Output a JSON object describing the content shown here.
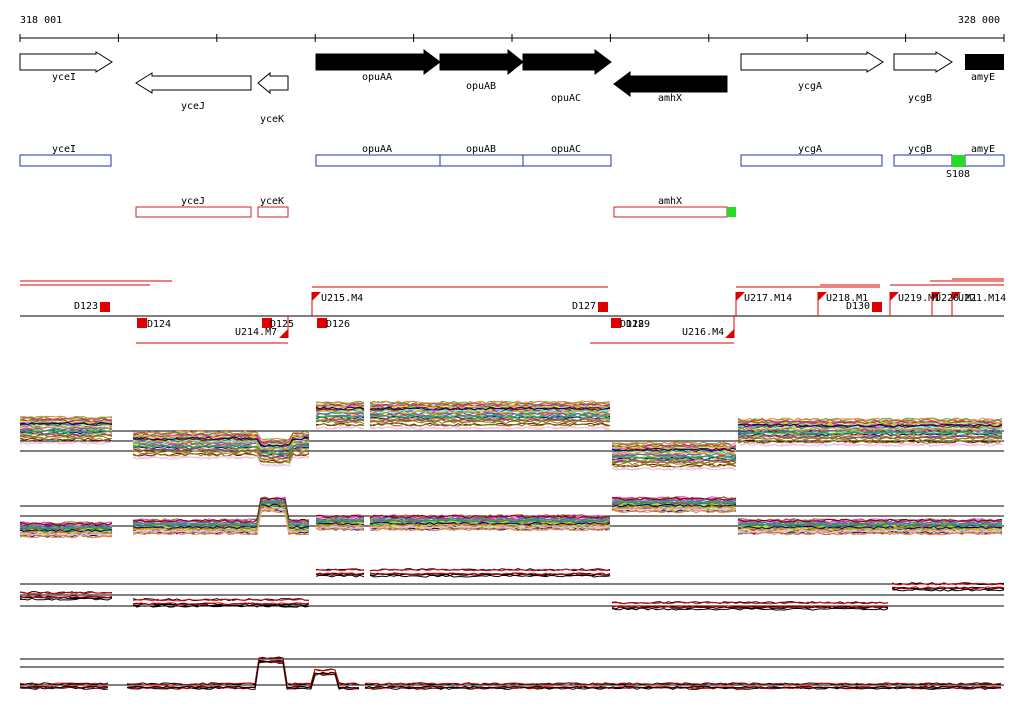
{
  "ruler": {
    "start_label": "318 001",
    "end_label": "328 000"
  },
  "colors": {
    "filled_gene": "#000000",
    "outline_gene": "#000000",
    "sense_box": "#2233aa",
    "antisense_box": "#cc2222",
    "marker_green": "#22dd22",
    "segment_red": "#dd0000"
  },
  "genes": [
    {
      "label": "yceI",
      "filled": false,
      "dir": "right"
    },
    {
      "label": "yceJ",
      "filled": false,
      "dir": "left"
    },
    {
      "label": "yceK",
      "filled": false,
      "dir": "left"
    },
    {
      "label": "opuAA",
      "filled": true,
      "dir": "right"
    },
    {
      "label": "opuAB",
      "filled": true,
      "dir": "right"
    },
    {
      "label": "opuAC",
      "filled": true,
      "dir": "right"
    },
    {
      "label": "amhX",
      "filled": true,
      "dir": "left"
    },
    {
      "label": "ycgA",
      "filled": false,
      "dir": "right"
    },
    {
      "label": "ycgB",
      "filled": false,
      "dir": "right"
    },
    {
      "label": "amyE",
      "filled": true,
      "dir": "right"
    }
  ],
  "sense_transcripts": [
    "yceI",
    "opuAA",
    "opuAB",
    "opuAC",
    "ycgA",
    "ycgB",
    "amyE"
  ],
  "antisense_transcripts": [
    "yceJ",
    "yceK",
    "amhX"
  ],
  "green_markers": [
    {
      "label": "S108"
    },
    {
      "label": ""
    }
  ],
  "segment_labels": {
    "D123": "D123",
    "D124": "D124",
    "U214": "U214.M7",
    "D125": "D125",
    "U215": "U215.M4",
    "D126": "D126",
    "D127": "D127",
    "D128": "D128",
    "D129": "D129",
    "U216": "U216.M4",
    "U217": "U217.M14",
    "U218": "U218.M1",
    "D130": "D130",
    "U219": "U219.M1",
    "U220": "U220.M1",
    "U221": "U221.M14"
  },
  "profile_series_count": 40,
  "profile_palette": [
    "#e6194b",
    "#3cb44b",
    "#ffe119",
    "#4363d8",
    "#f58231",
    "#911eb4",
    "#46f0f0",
    "#f032e6",
    "#bcf60c",
    "#fabebe",
    "#008080",
    "#e6beff",
    "#9a6324",
    "#800000",
    "#aaffc3",
    "#808000",
    "#000075",
    "#808080",
    "#ff8800",
    "#00aa55"
  ]
}
